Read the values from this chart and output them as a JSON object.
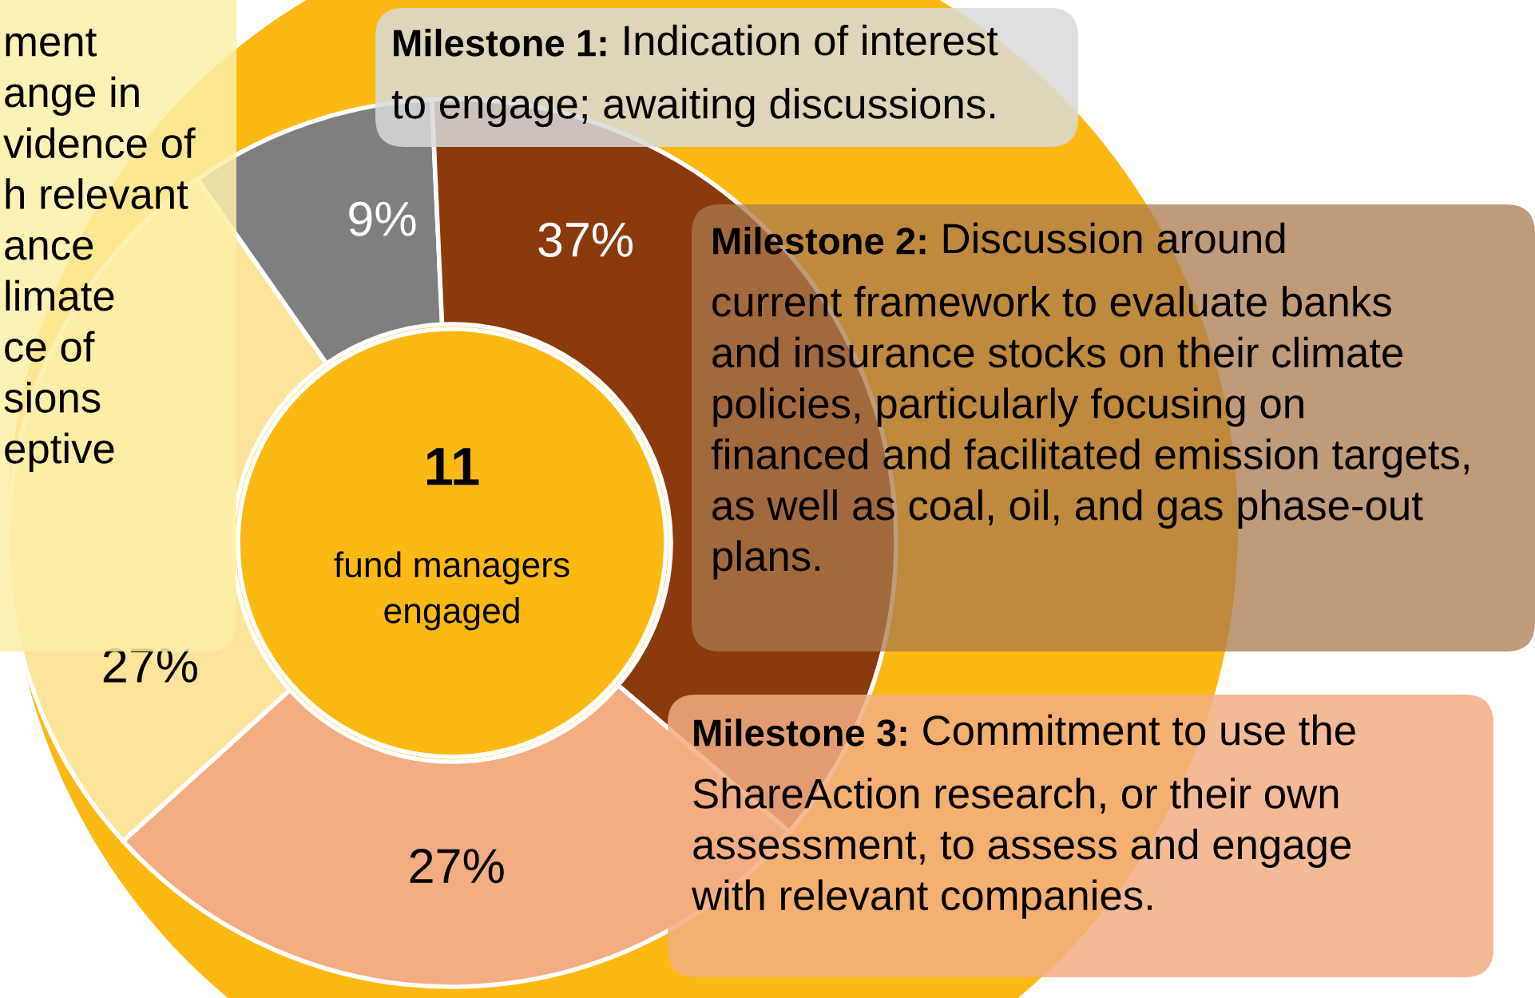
{
  "chart_data": {
    "type": "donut",
    "categories": [
      null,
      null,
      null,
      null
    ],
    "values": [
      9,
      37,
      27,
      27
    ],
    "colors": [
      "#7f7f7f",
      "#8b3a0e",
      "#f2ae82",
      "#fde49a"
    ],
    "value_labels": [
      "9%",
      "37%",
      "27%",
      "27%"
    ],
    "title": "11\nfund managers\nengaged",
    "annotations": [
      "Milestone 1: Indication of interest\nto engage; awaiting discussions.",
      "Milestone 2: Discussion around\ncurrent framework to evaluate banks\nand insurance stocks on their climate\npolicies, particularly focusing on\nfinanced and facilitated emission targets,\nas well as coal, oil, and gas phase-out\nplans.",
      "Milestone 3: Commitment to use the\nShareAction research, or their own\nassessment, to assess and engage\nwith relevant companies.",
      "ment\nange in\nvidence of\nh relevant\nance\nlimate\nce of\nsions\neptive"
    ]
  }
}
